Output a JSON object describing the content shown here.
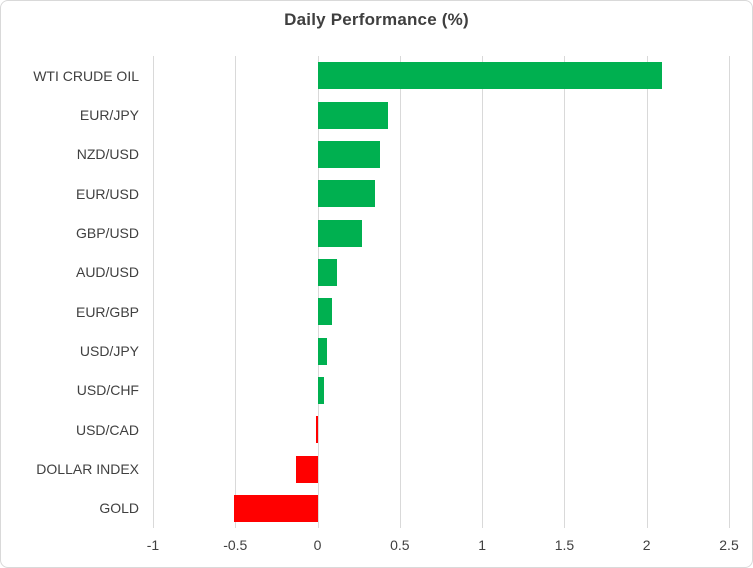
{
  "title": "Daily Performance (%)",
  "chart_data": {
    "type": "bar",
    "orientation": "horizontal",
    "title": "Daily Performance (%)",
    "categories": [
      "WTI CRUDE OIL",
      "EUR/JPY",
      "NZD/USD",
      "EUR/USD",
      "GBP/USD",
      "AUD/USD",
      "EUR/GBP",
      "USD/JPY",
      "USD/CHF",
      "USD/CAD",
      "DOLLAR INDEX",
      "GOLD"
    ],
    "values": [
      2.09,
      0.43,
      0.38,
      0.35,
      0.27,
      0.12,
      0.09,
      0.06,
      0.04,
      -0.01,
      -0.13,
      -0.51
    ],
    "xlabel": "",
    "ylabel": "",
    "xlim": [
      -1,
      2.5
    ],
    "xticks": [
      -1,
      -0.5,
      0,
      0.5,
      1,
      1.5,
      2,
      2.5
    ],
    "xtick_labels": [
      "-1",
      "-0.5",
      "0",
      "0.5",
      "1",
      "1.5",
      "2",
      "2.5"
    ],
    "grid": true,
    "legend": false,
    "bar_order": "top-to-bottom"
  },
  "colors": {
    "positive": "#00B050",
    "negative": "#FF0000",
    "gridline": "#D9D9D9",
    "title_text": "#3F3F3F",
    "label_text": "#404040",
    "frame_border": "#D9D9D9",
    "background": "#FFFFFF"
  }
}
